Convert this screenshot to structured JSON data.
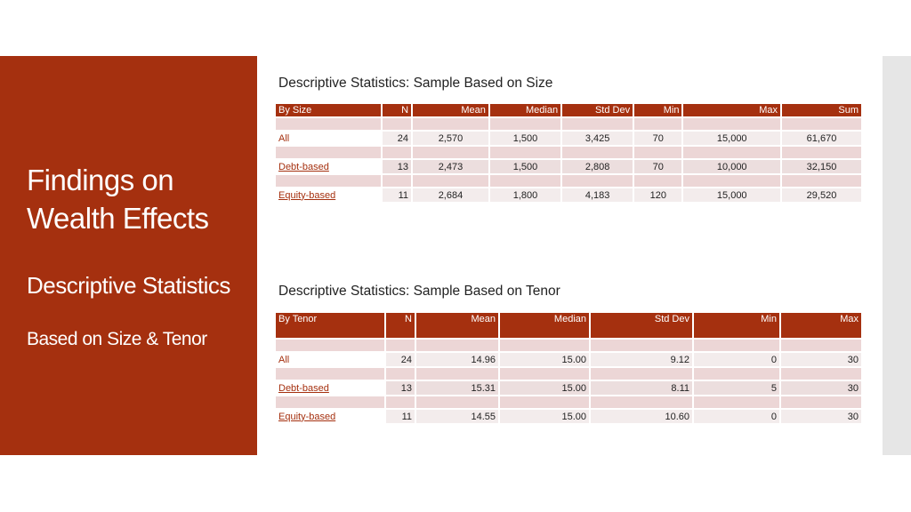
{
  "sidebar": {
    "title": "Findings on Wealth Effects",
    "subtitle": "Descriptive Statistics",
    "subtitle2": "Based on Size & Tenor"
  },
  "size_section": {
    "caption": "Descriptive Statistics: Sample Based on Size",
    "headers": [
      "By Size",
      "N",
      "Mean",
      "Median",
      "Std Dev",
      "Min",
      "Max",
      "Sum"
    ],
    "rows": [
      {
        "label": "All",
        "N": "24",
        "mean": "2,570",
        "median": "1,500",
        "std": "3,425",
        "min": "70",
        "max": "15,000",
        "sum": "61,670"
      },
      {
        "label": "Debt-based",
        "N": "13",
        "mean": "2,473",
        "median": "1,500",
        "std": "2,808",
        "min": "70",
        "max": "10,000",
        "sum": "32,150"
      },
      {
        "label": "Equity-based",
        "N": "11",
        "mean": "2,684",
        "median": "1,800",
        "std": "4,183",
        "min": "120",
        "max": "15,000",
        "sum": "29,520"
      }
    ]
  },
  "tenor_section": {
    "caption": "Descriptive Statistics: Sample Based on Tenor",
    "headers": [
      "By Tenor",
      "N",
      "Mean",
      "Median",
      "Std Dev",
      "Min",
      "Max"
    ],
    "rows": [
      {
        "label": "All",
        "N": "24",
        "mean": "14.96",
        "median": "15.00",
        "std": "9.12",
        "min": "0",
        "max": "30"
      },
      {
        "label": "Debt-based",
        "N": "13",
        "mean": "15.31",
        "median": "15.00",
        "std": "8.11",
        "min": "5",
        "max": "30"
      },
      {
        "label": "Equity-based",
        "N": "11",
        "mean": "14.55",
        "median": "15.00",
        "std": "10.60",
        "min": "0",
        "max": "30"
      }
    ]
  },
  "colors": {
    "accent": "#a5300f",
    "row_fill": "#ecdede",
    "gap_fill": "#ecd6d6",
    "side_strip": "#e6e6e6"
  }
}
